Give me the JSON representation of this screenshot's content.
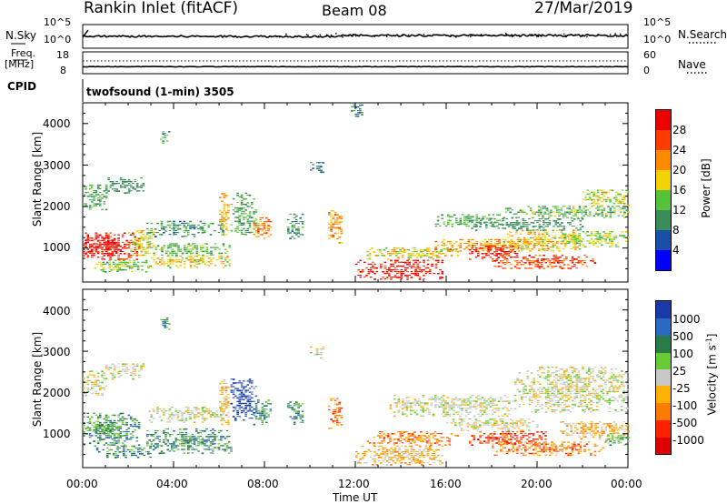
{
  "header": {
    "station": "Rankin Inlet (fitACF)",
    "beam": "Beam 08",
    "date": "27/Mar/2019"
  },
  "noise_panel": {
    "left_label": "N.Sky",
    "left_ticks": [
      "10^5",
      "10^0"
    ],
    "right_label": "N.Search",
    "right_ticks": [
      "10^5",
      "10^0"
    ]
  },
  "freq_panel": {
    "label_line1": "Freq.",
    "label_line2": "[MHz]",
    "left_ticks": [
      "18",
      "8"
    ],
    "right_ticks": [
      "60",
      "0"
    ],
    "right_label": "Nave"
  },
  "cpid": {
    "label": "CPID",
    "value": "twofsound (1-min) 3505"
  },
  "colors": {
    "power": [
      "#0000ff",
      "#1a4fa8",
      "#3a8c5a",
      "#55c23a",
      "#f2d200",
      "#ff8c00",
      "#ff3c00",
      "#ee0000"
    ],
    "velocity": [
      "#1a3aa8",
      "#2a6ac0",
      "#2a7a4a",
      "#66cc33",
      "#c8c8c8",
      "#ffb000",
      "#ff7a00",
      "#ff2000",
      "#e00000"
    ]
  },
  "chart_data": [
    {
      "type": "heatmap",
      "name": "power",
      "ylabel": "Slant Range [km]",
      "xlabel": "",
      "xlim_hours": [
        0,
        24
      ],
      "ylim_km": [
        180,
        4500
      ],
      "yticks": [
        "1000",
        "2000",
        "3000",
        "4000"
      ],
      "colorbar": {
        "label": "Power [dB]",
        "ticks": [
          "28",
          "24",
          "20",
          "16",
          "12",
          "8",
          "4"
        ],
        "range": [
          0,
          32
        ]
      },
      "regions": [
        {
          "t0": 0.0,
          "t1": 2.5,
          "r0": 700,
          "r1": 1350,
          "value": 29
        },
        {
          "t0": 0.0,
          "t1": 1.6,
          "r0": 800,
          "r1": 1250,
          "value": 31
        },
        {
          "t0": 2.0,
          "t1": 3.2,
          "r0": 800,
          "r1": 1400,
          "value": 18
        },
        {
          "t0": 0.0,
          "t1": 1.0,
          "r0": 1900,
          "r1": 2500,
          "value": 12
        },
        {
          "t0": 1.0,
          "t1": 2.7,
          "r0": 2300,
          "r1": 2700,
          "value": 9
        },
        {
          "t0": 0.5,
          "t1": 3.0,
          "r0": 400,
          "r1": 700,
          "value": 14
        },
        {
          "t0": 2.8,
          "t1": 6.2,
          "r0": 1250,
          "r1": 1650,
          "value": 10
        },
        {
          "t0": 3.0,
          "t1": 6.5,
          "r0": 500,
          "r1": 800,
          "value": 18
        },
        {
          "t0": 3.0,
          "t1": 6.5,
          "r0": 800,
          "r1": 1100,
          "value": 13
        },
        {
          "t0": 3.4,
          "t1": 3.8,
          "r0": 3500,
          "r1": 3800,
          "value": 11
        },
        {
          "t0": 6.0,
          "t1": 6.4,
          "r0": 1200,
          "r1": 2300,
          "value": 20
        },
        {
          "t0": 6.5,
          "t1": 7.6,
          "r0": 1300,
          "r1": 2300,
          "value": 12
        },
        {
          "t0": 7.5,
          "t1": 8.3,
          "r0": 1200,
          "r1": 1800,
          "value": 22
        },
        {
          "t0": 9.0,
          "t1": 9.7,
          "r0": 1200,
          "r1": 1800,
          "value": 11
        },
        {
          "t0": 10.8,
          "t1": 11.4,
          "r0": 1100,
          "r1": 1900,
          "value": 22
        },
        {
          "t0": 11.8,
          "t1": 12.3,
          "r0": 4100,
          "r1": 4500,
          "value": 10
        },
        {
          "t0": 10.0,
          "t1": 10.6,
          "r0": 2800,
          "r1": 3100,
          "value": 8
        },
        {
          "t0": 12.0,
          "t1": 15.8,
          "r0": 220,
          "r1": 700,
          "value": 30
        },
        {
          "t0": 12.5,
          "t1": 16.5,
          "r0": 700,
          "r1": 1000,
          "value": 18
        },
        {
          "t0": 15.5,
          "t1": 18.5,
          "r0": 1500,
          "r1": 1800,
          "value": 12
        },
        {
          "t0": 15.5,
          "t1": 20.5,
          "r0": 900,
          "r1": 1200,
          "value": 21
        },
        {
          "t0": 17.0,
          "t1": 19.2,
          "r0": 700,
          "r1": 1050,
          "value": 28
        },
        {
          "t0": 18.5,
          "t1": 22.0,
          "r0": 900,
          "r1": 1400,
          "value": 19
        },
        {
          "t0": 18.0,
          "t1": 22.5,
          "r0": 480,
          "r1": 800,
          "value": 26
        },
        {
          "t0": 21.0,
          "t1": 24.0,
          "r0": 1000,
          "r1": 1400,
          "value": 15
        },
        {
          "t0": 18.5,
          "t1": 24.0,
          "r0": 1700,
          "r1": 2000,
          "value": 13
        },
        {
          "t0": 22.0,
          "t1": 24.0,
          "r0": 2000,
          "r1": 2400,
          "value": 17
        },
        {
          "t0": 17.0,
          "t1": 22.0,
          "r0": 1400,
          "r1": 1700,
          "value": 9
        }
      ]
    },
    {
      "type": "heatmap",
      "name": "velocity",
      "ylabel": "Slant Range [km]",
      "xlabel": "Time UT",
      "xlim_hours": [
        0,
        24
      ],
      "xticks": [
        "00:00",
        "04:00",
        "08:00",
        "12:00",
        "16:00",
        "20:00",
        "00:00"
      ],
      "ylim_km": [
        180,
        4500
      ],
      "yticks": [
        "1000",
        "2000",
        "3000",
        "4000"
      ],
      "colorbar": {
        "label": "Velocity [m s",
        "label_sup": "-1",
        "label_end": "]",
        "ticks": [
          "1000",
          "500",
          "100",
          "25",
          "-25",
          "-100",
          "-500",
          "-1000"
        ]
      },
      "regions": [
        {
          "t0": 0.0,
          "t1": 2.5,
          "r0": 700,
          "r1": 1500,
          "value": 2
        },
        {
          "t0": 0.0,
          "t1": 1.5,
          "r0": 1000,
          "r1": 1300,
          "value": 3
        },
        {
          "t0": 0.0,
          "t1": 1.0,
          "r0": 1900,
          "r1": 2500,
          "value": 4
        },
        {
          "t0": 0.5,
          "t1": 3.0,
          "r0": 400,
          "r1": 700,
          "value": 2
        },
        {
          "t0": 2.8,
          "t1": 6.5,
          "r0": 500,
          "r1": 1100,
          "value": 2
        },
        {
          "t0": 2.8,
          "t1": 6.2,
          "r0": 1250,
          "r1": 1650,
          "value": 4
        },
        {
          "t0": 1.0,
          "t1": 2.7,
          "r0": 2300,
          "r1": 2700,
          "value": 4
        },
        {
          "t0": 3.4,
          "t1": 3.8,
          "r0": 3500,
          "r1": 3800,
          "value": 2
        },
        {
          "t0": 6.5,
          "t1": 7.6,
          "r0": 1300,
          "r1": 2300,
          "value": 0
        },
        {
          "t0": 6.0,
          "t1": 6.4,
          "r0": 1200,
          "r1": 2300,
          "value": 5
        },
        {
          "t0": 7.5,
          "t1": 8.3,
          "r0": 1200,
          "r1": 1800,
          "value": 2
        },
        {
          "t0": 9.0,
          "t1": 9.7,
          "r0": 1200,
          "r1": 1800,
          "value": 2
        },
        {
          "t0": 10.8,
          "t1": 11.4,
          "r0": 1100,
          "r1": 1900,
          "value": 6
        },
        {
          "t0": 10.0,
          "t1": 10.6,
          "r0": 2800,
          "r1": 3100,
          "value": 4
        },
        {
          "t0": 12.0,
          "t1": 15.8,
          "r0": 220,
          "r1": 700,
          "value": 5
        },
        {
          "t0": 12.5,
          "t1": 16.5,
          "r0": 700,
          "r1": 1050,
          "value": 6
        },
        {
          "t0": 13.5,
          "t1": 19.0,
          "r0": 1400,
          "r1": 1900,
          "value": 4
        },
        {
          "t0": 16.0,
          "t1": 20.0,
          "r0": 1050,
          "r1": 1350,
          "value": 4
        },
        {
          "t0": 17.0,
          "t1": 20.5,
          "r0": 700,
          "r1": 1050,
          "value": 7
        },
        {
          "t0": 18.0,
          "t1": 23.0,
          "r0": 450,
          "r1": 800,
          "value": 6
        },
        {
          "t0": 19.0,
          "t1": 24.0,
          "r0": 1500,
          "r1": 2600,
          "value": 4
        },
        {
          "t0": 21.0,
          "t1": 24.0,
          "r0": 850,
          "r1": 1300,
          "value": 5
        },
        {
          "t0": 23.0,
          "t1": 24.0,
          "r0": 700,
          "r1": 1000,
          "value": 3
        }
      ]
    }
  ]
}
